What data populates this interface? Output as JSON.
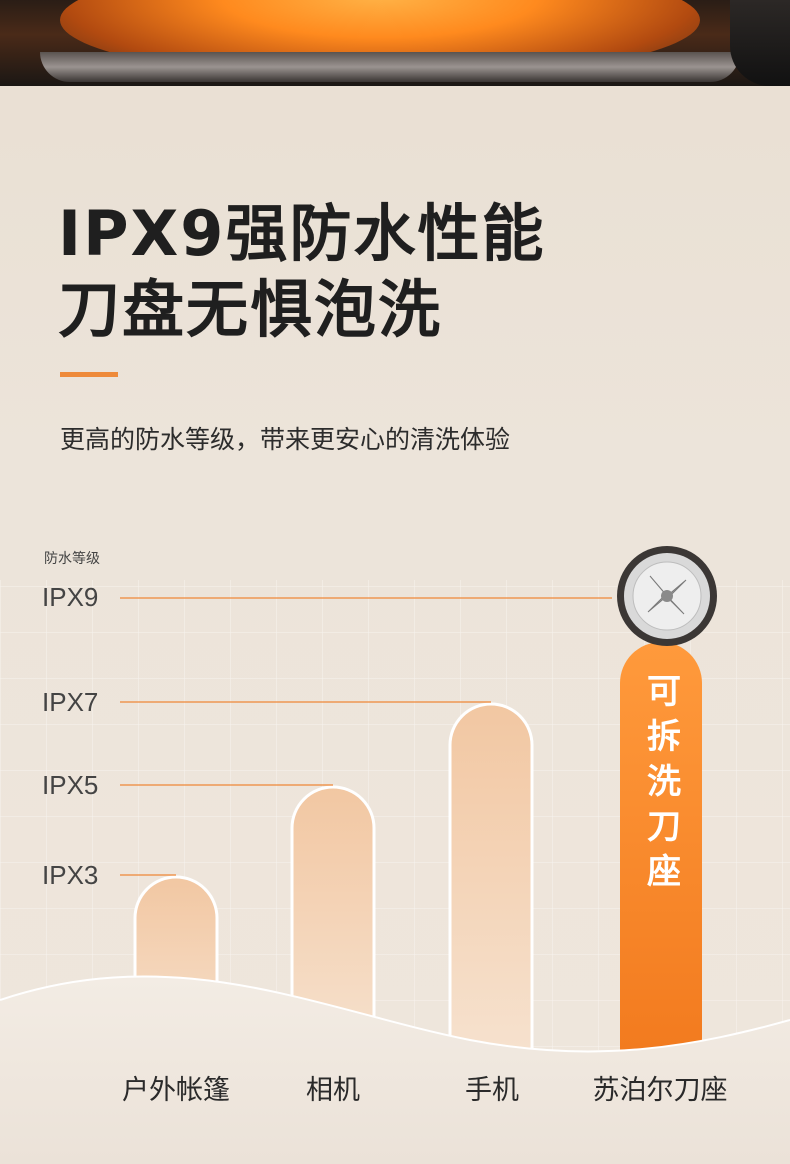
{
  "headline": {
    "line1": "IPX9强防水性能",
    "line2": "刀盘无惧泡洗"
  },
  "subtitle": "更高的防水等级，带来更安心的清洗体验",
  "accent_color": "#ee8a3a",
  "chart_data": {
    "type": "bar",
    "title": "",
    "ylabel": "防水等级",
    "yticks": [
      "IPX3",
      "IPX5",
      "IPX7",
      "IPX9"
    ],
    "categories": [
      "户外帐篷",
      "相机",
      "手机",
      "苏泊尔刀座"
    ],
    "values": [
      "IPX3",
      "IPX5",
      "IPX7",
      "IPX9"
    ],
    "highlight_index": 3,
    "highlight_text": [
      "可",
      "拆",
      "洗",
      "刀",
      "座"
    ],
    "grid": true
  }
}
